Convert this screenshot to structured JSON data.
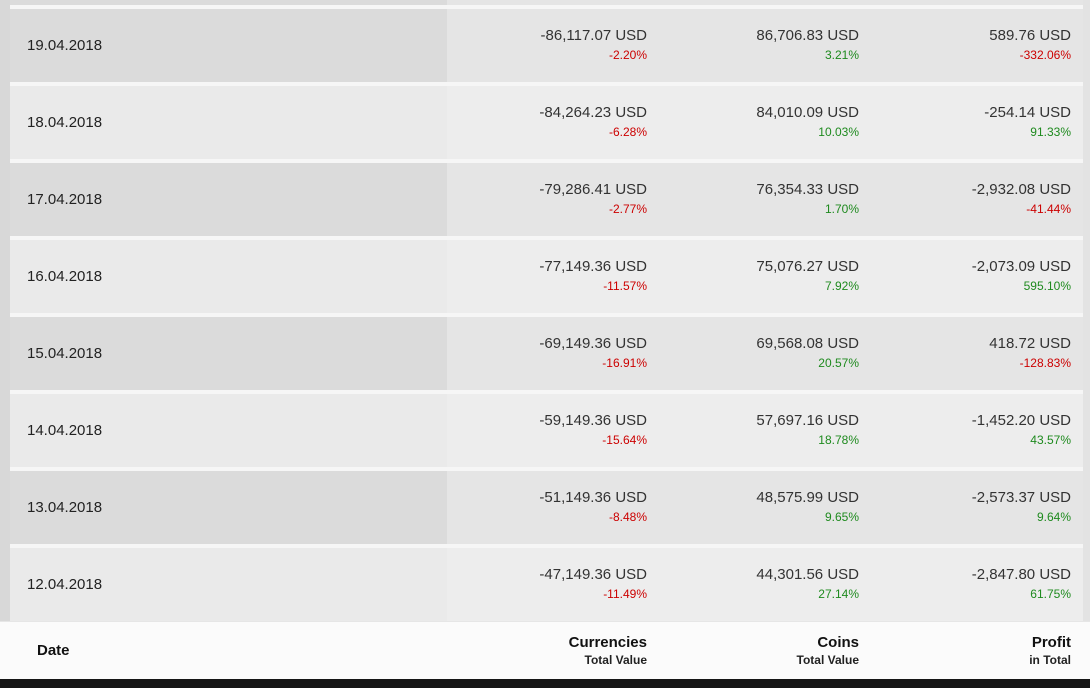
{
  "colors": {
    "positive": "#1e8a1e",
    "negative": "#cc0000"
  },
  "table": {
    "columns": {
      "date": {
        "label": "Date"
      },
      "currencies": {
        "label": "Currencies",
        "sub": "Total Value"
      },
      "coins": {
        "label": "Coins",
        "sub": "Total Value"
      },
      "profit": {
        "label": "Profit",
        "sub": "in Total"
      }
    },
    "rows": [
      {
        "date": "19.04.2018",
        "currencies": {
          "value": "-86,117.07 USD",
          "pct": "-2.20%",
          "trend": "down"
        },
        "coins": {
          "value": "86,706.83 USD",
          "pct": "3.21%",
          "trend": "up"
        },
        "profit": {
          "value": "589.76 USD",
          "pct": "-332.06%",
          "trend": "down"
        }
      },
      {
        "date": "18.04.2018",
        "currencies": {
          "value": "-84,264.23 USD",
          "pct": "-6.28%",
          "trend": "down"
        },
        "coins": {
          "value": "84,010.09 USD",
          "pct": "10.03%",
          "trend": "up"
        },
        "profit": {
          "value": "-254.14 USD",
          "pct": "91.33%",
          "trend": "up"
        }
      },
      {
        "date": "17.04.2018",
        "currencies": {
          "value": "-79,286.41 USD",
          "pct": "-2.77%",
          "trend": "down"
        },
        "coins": {
          "value": "76,354.33 USD",
          "pct": "1.70%",
          "trend": "up"
        },
        "profit": {
          "value": "-2,932.08 USD",
          "pct": "-41.44%",
          "trend": "down"
        }
      },
      {
        "date": "16.04.2018",
        "currencies": {
          "value": "-77,149.36 USD",
          "pct": "-11.57%",
          "trend": "down"
        },
        "coins": {
          "value": "75,076.27 USD",
          "pct": "7.92%",
          "trend": "up"
        },
        "profit": {
          "value": "-2,073.09 USD",
          "pct": "595.10%",
          "trend": "up"
        }
      },
      {
        "date": "15.04.2018",
        "currencies": {
          "value": "-69,149.36 USD",
          "pct": "-16.91%",
          "trend": "down"
        },
        "coins": {
          "value": "69,568.08 USD",
          "pct": "20.57%",
          "trend": "up"
        },
        "profit": {
          "value": "418.72 USD",
          "pct": "-128.83%",
          "trend": "down"
        }
      },
      {
        "date": "14.04.2018",
        "currencies": {
          "value": "-59,149.36 USD",
          "pct": "-15.64%",
          "trend": "down"
        },
        "coins": {
          "value": "57,697.16 USD",
          "pct": "18.78%",
          "trend": "up"
        },
        "profit": {
          "value": "-1,452.20 USD",
          "pct": "43.57%",
          "trend": "up"
        }
      },
      {
        "date": "13.04.2018",
        "currencies": {
          "value": "-51,149.36 USD",
          "pct": "-8.48%",
          "trend": "down"
        },
        "coins": {
          "value": "48,575.99 USD",
          "pct": "9.65%",
          "trend": "up"
        },
        "profit": {
          "value": "-2,573.37 USD",
          "pct": "9.64%",
          "trend": "up"
        }
      },
      {
        "date": "12.04.2018",
        "currencies": {
          "value": "-47,149.36 USD",
          "pct": "-11.49%",
          "trend": "down"
        },
        "coins": {
          "value": "44,301.56 USD",
          "pct": "27.14%",
          "trend": "up"
        },
        "profit": {
          "value": "-2,847.80 USD",
          "pct": "61.75%",
          "trend": "up"
        }
      }
    ]
  }
}
